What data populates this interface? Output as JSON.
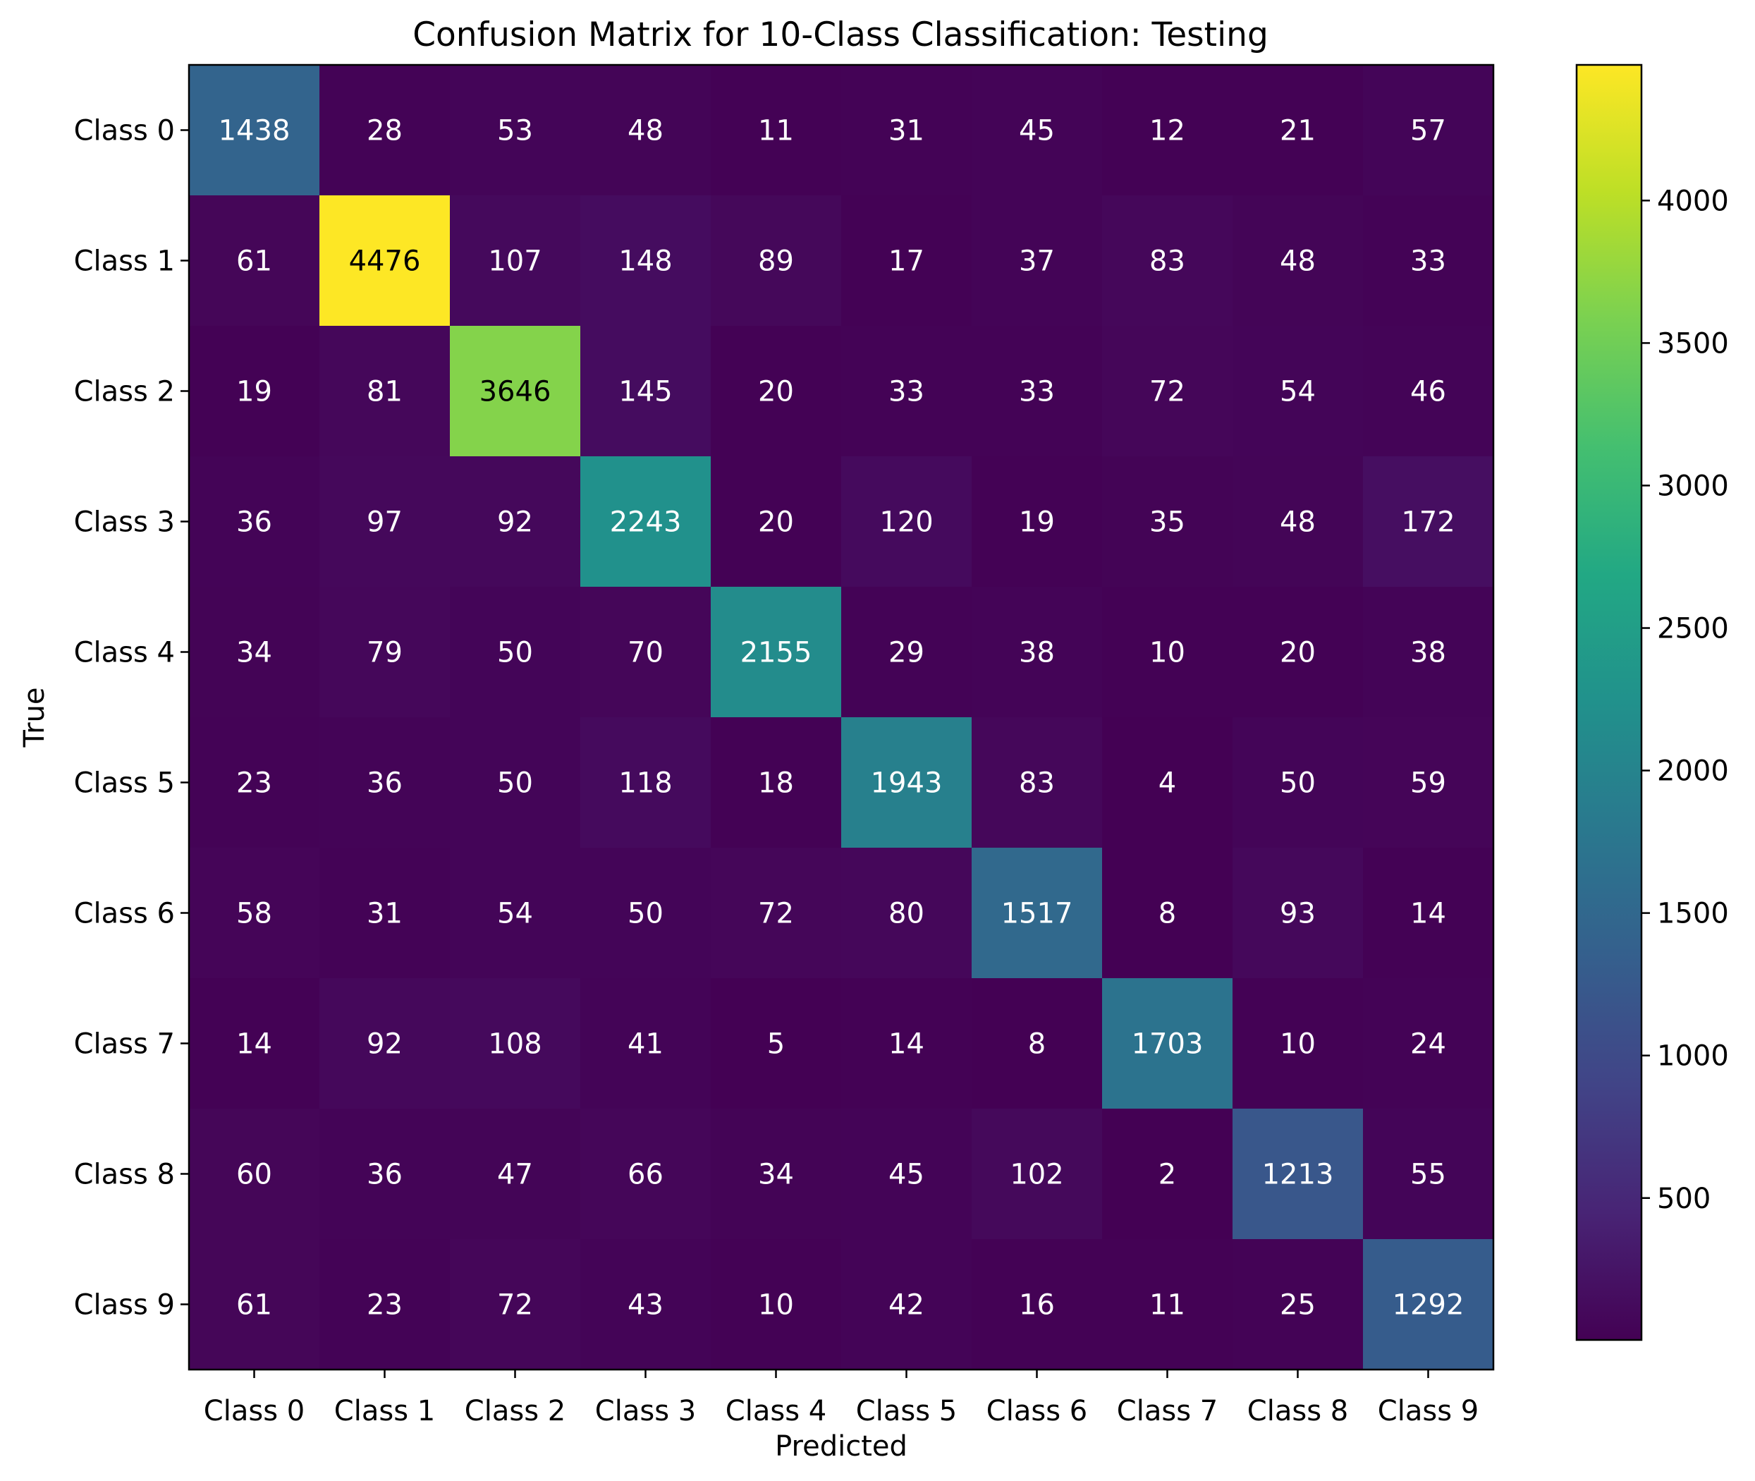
{
  "chart_data": {
    "type": "heatmap",
    "title": "Confusion Matrix for 10-Class Classification: Testing",
    "xlabel": "Predicted",
    "ylabel": "True",
    "x_categories": [
      "Class 0",
      "Class 1",
      "Class 2",
      "Class 3",
      "Class 4",
      "Class 5",
      "Class 6",
      "Class 7",
      "Class 8",
      "Class 9"
    ],
    "y_categories": [
      "Class 0",
      "Class 1",
      "Class 2",
      "Class 3",
      "Class 4",
      "Class 5",
      "Class 6",
      "Class 7",
      "Class 8",
      "Class 9"
    ],
    "matrix": [
      [
        1438,
        28,
        53,
        48,
        11,
        31,
        45,
        12,
        21,
        57
      ],
      [
        61,
        4476,
        107,
        148,
        89,
        17,
        37,
        83,
        48,
        33
      ],
      [
        19,
        81,
        3646,
        145,
        20,
        33,
        33,
        72,
        54,
        46
      ],
      [
        36,
        97,
        92,
        2243,
        20,
        120,
        19,
        35,
        48,
        172
      ],
      [
        34,
        79,
        50,
        70,
        2155,
        29,
        38,
        10,
        20,
        38
      ],
      [
        23,
        36,
        50,
        118,
        18,
        1943,
        83,
        4,
        50,
        59
      ],
      [
        58,
        31,
        54,
        50,
        72,
        80,
        1517,
        8,
        93,
        14
      ],
      [
        14,
        92,
        108,
        41,
        5,
        14,
        8,
        1703,
        10,
        24
      ],
      [
        60,
        36,
        47,
        66,
        34,
        45,
        102,
        2,
        1213,
        55
      ],
      [
        61,
        23,
        72,
        43,
        10,
        42,
        16,
        11,
        25,
        1292
      ]
    ],
    "colormap": "viridis",
    "value_range": [
      2,
      4476
    ],
    "colorbar_ticks": [
      500,
      1000,
      1500,
      2000,
      2500,
      3000,
      3500,
      4000
    ],
    "grid": false,
    "annotations": "cell values"
  }
}
